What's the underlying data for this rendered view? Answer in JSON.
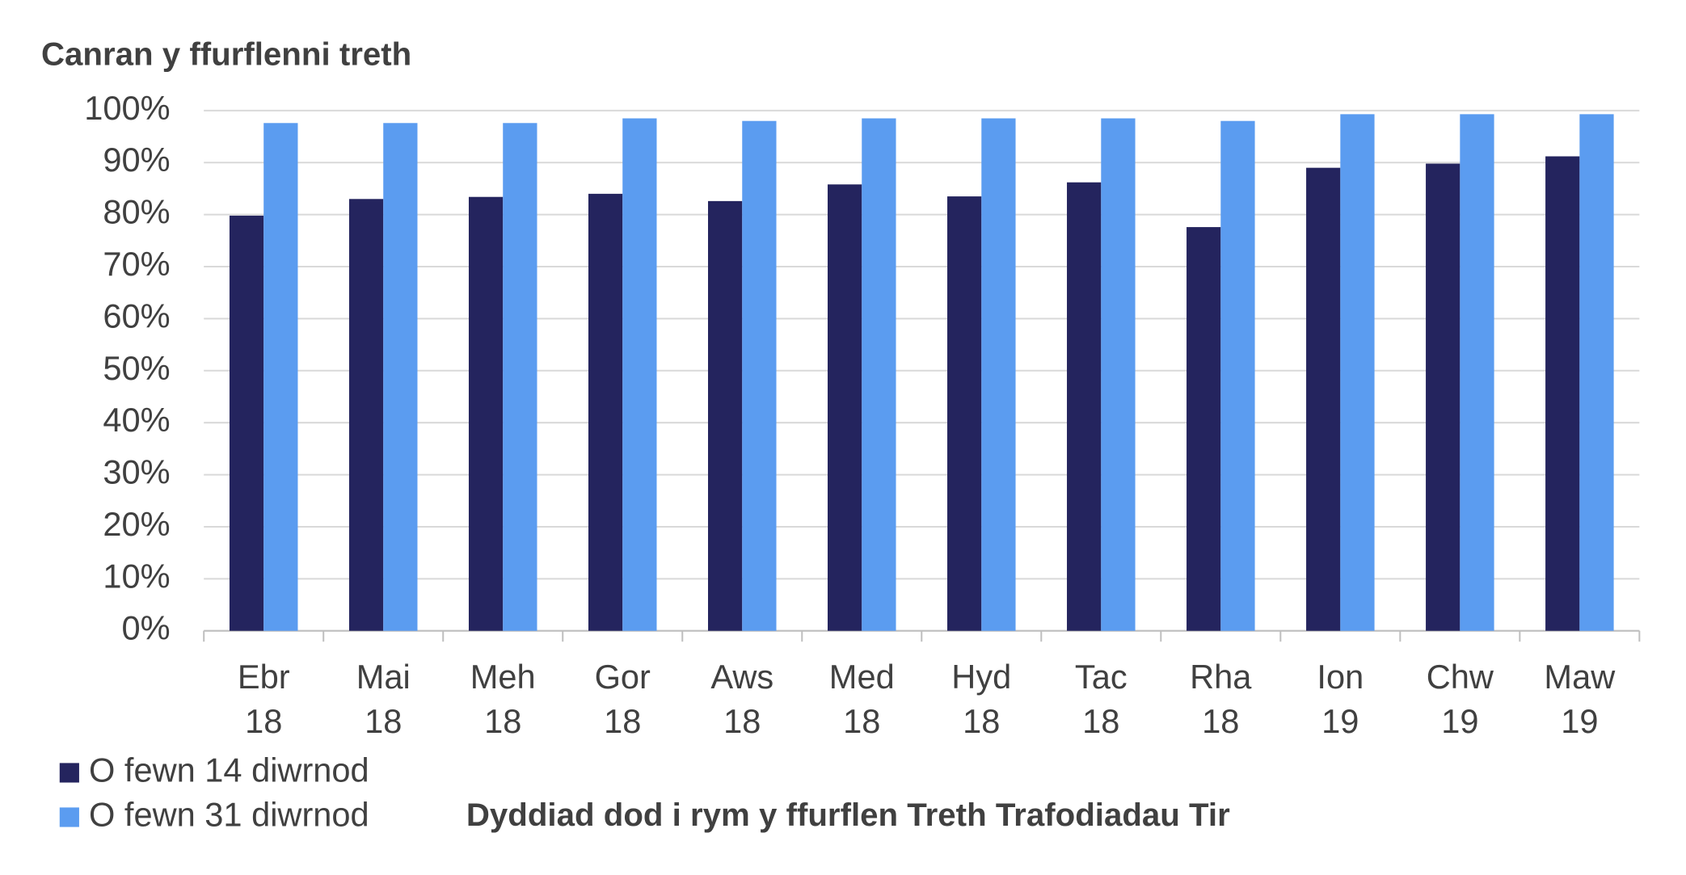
{
  "chart_data": {
    "type": "bar",
    "y_axis_title": "Canran y ffurflenni treth",
    "x_axis_title": "Dyddiad dod i rym y ffurflen Treth Trafodiadau Tir",
    "categories": [
      "Ebr 18",
      "Mai 18",
      "Meh 18",
      "Gor 18",
      "Aws 18",
      "Med 18",
      "Hyd 18",
      "Tac 18",
      "Rha 18",
      "Ion 19",
      "Chw 19",
      "Maw 19"
    ],
    "series": [
      {
        "name": "O fewn 14 diwrnod",
        "color": "#24245e",
        "values": [
          79.8,
          83,
          83.4,
          84,
          82.6,
          85.8,
          83.5,
          86.2,
          77.6,
          89,
          89.8,
          91.2
        ]
      },
      {
        "name": "O fewn 31 diwrnod",
        "color": "#5b9cf0",
        "values": [
          97.6,
          97.6,
          97.6,
          98.5,
          98,
          98.5,
          98.5,
          98.5,
          98,
          99.3,
          99.3,
          99.3
        ]
      }
    ],
    "ylim": [
      0,
      100
    ],
    "yticks": [
      {
        "value": 0,
        "label": "0%"
      },
      {
        "value": 10,
        "label": "10%"
      },
      {
        "value": 20,
        "label": "20%"
      },
      {
        "value": 30,
        "label": "30%"
      },
      {
        "value": 40,
        "label": "40%"
      },
      {
        "value": 50,
        "label": "50%"
      },
      {
        "value": 60,
        "label": "60%"
      },
      {
        "value": 70,
        "label": "70%"
      },
      {
        "value": 80,
        "label": "80%"
      },
      {
        "value": 90,
        "label": "90%"
      },
      {
        "value": 100,
        "label": "100%"
      }
    ],
    "grid": true
  }
}
